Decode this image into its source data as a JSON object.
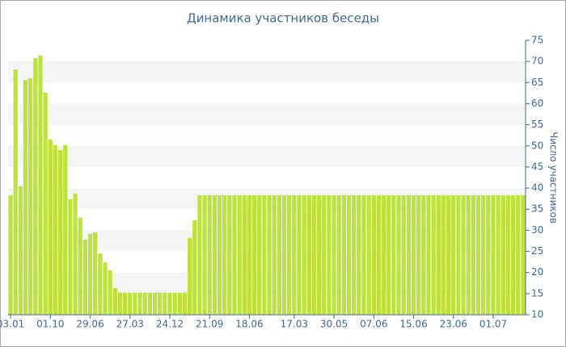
{
  "chart_data": {
    "type": "bar",
    "title": "Динамика участников беседы",
    "y_label": "Число участников",
    "categories": [
      "03.01",
      null,
      null,
      null,
      null,
      null,
      null,
      null,
      "01.10",
      null,
      null,
      null,
      null,
      null,
      null,
      null,
      "29.06",
      null,
      null,
      null,
      null,
      null,
      null,
      null,
      "27.03",
      null,
      null,
      null,
      null,
      null,
      null,
      null,
      "24.12",
      null,
      null,
      null,
      null,
      null,
      null,
      null,
      "21.09",
      null,
      null,
      null,
      null,
      null,
      null,
      null,
      "18.06",
      null,
      null,
      null,
      null,
      null,
      null,
      null,
      null,
      "17.03",
      null,
      null,
      null,
      null,
      null,
      null,
      null,
      "30.05",
      null,
      null,
      null,
      null,
      null,
      null,
      null,
      "07.06",
      null,
      null,
      null,
      null,
      null,
      null,
      null,
      "15.06",
      null,
      null,
      null,
      null,
      null,
      null,
      null,
      "23.06",
      null,
      null,
      null,
      null,
      null,
      null,
      null,
      "01.07",
      null,
      null,
      null,
      null,
      null,
      null
    ],
    "values": [
      38.3,
      68.1,
      40.4,
      65.6,
      66,
      70.8,
      71.4,
      62.6,
      51.5,
      50.2,
      49,
      50.2,
      37.3,
      38.7,
      33,
      27.8,
      29.1,
      29.5,
      24.5,
      22.4,
      20.5,
      16.3,
      15.2,
      15.2,
      15.2,
      15.2,
      15.2,
      15.2,
      15.2,
      15.2,
      15.2,
      15.2,
      15.2,
      15.2,
      15.2,
      15.2,
      28.2,
      32.4,
      38.3,
      38.3,
      38.3,
      38.3,
      38.3,
      38.3,
      38.3,
      38.3,
      38.3,
      38.3,
      38.3,
      38.3,
      38.3,
      38.3,
      38.3,
      38.3,
      38.3,
      38.3,
      38.3,
      38.3,
      38.3,
      38.3,
      38.3,
      38.3,
      38.3,
      38.3,
      38.3,
      38.3,
      38.3,
      38.3,
      38.3,
      38.3,
      38.3,
      38.3,
      38.3,
      38.3,
      38.3,
      38.3,
      38.3,
      38.3,
      38.3,
      38.3,
      38.3,
      38.3,
      38.3,
      38.3,
      38.3,
      38.3,
      38.3,
      38.3,
      38.3,
      38.3,
      38.3,
      38.3,
      38.3,
      38.3,
      38.3,
      38.3,
      38.3,
      38.3,
      38.3,
      38.3,
      38.3,
      38.3,
      38.3,
      38.3
    ],
    "color": "#bde23a",
    "ylim": [
      10,
      75
    ],
    "yticks": [
      10,
      15,
      20,
      25,
      30,
      35,
      40,
      45,
      50,
      55,
      60,
      65,
      70,
      75
    ],
    "grid": true,
    "y_axis_side": "right"
  }
}
